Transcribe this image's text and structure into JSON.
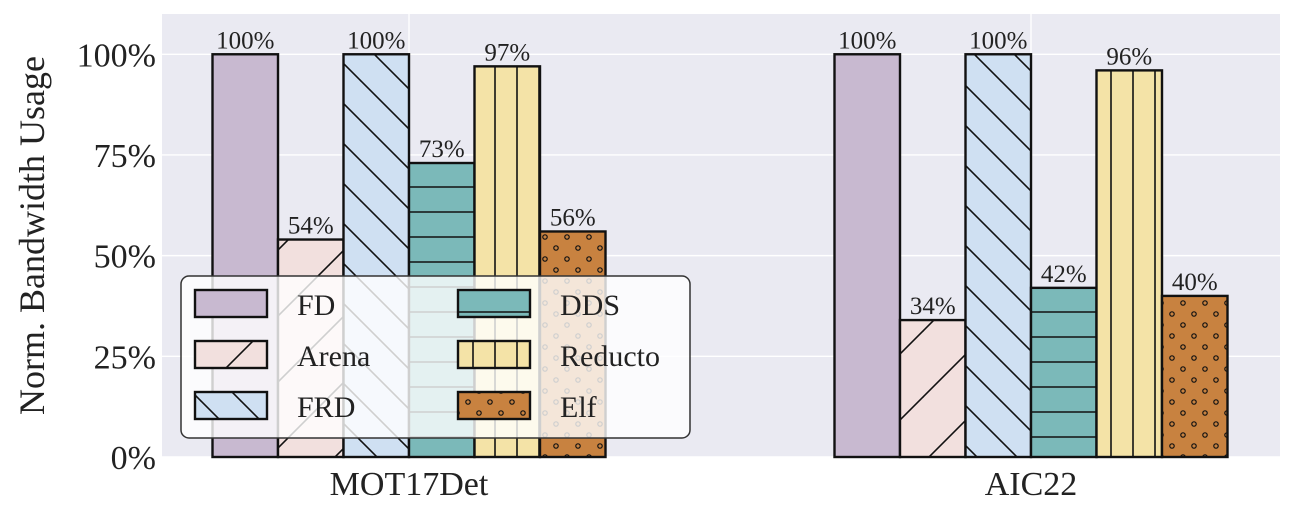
{
  "chart_data": {
    "type": "bar",
    "title": "",
    "xlabel": "",
    "ylabel": "Norm. Bandwidth Usage",
    "ylim": [
      0,
      110
    ],
    "yticks": [
      0,
      25,
      50,
      75,
      100
    ],
    "ytick_labels": [
      "0%",
      "25%",
      "50%",
      "75%",
      "100%"
    ],
    "categories": [
      "MOT17Det",
      "AIC22"
    ],
    "grid": true,
    "legend": "lower-left, 2 columns",
    "series": [
      {
        "name": "FD",
        "values": [
          100,
          100
        ],
        "labels": [
          "100%",
          "100%"
        ],
        "color": "#c8b9d0",
        "pattern": "none"
      },
      {
        "name": "Arena",
        "values": [
          54,
          34
        ],
        "labels": [
          "54%",
          "34%"
        ],
        "color": "#f2e0de",
        "pattern": "forward-diagonal"
      },
      {
        "name": "FRD",
        "values": [
          100,
          100
        ],
        "labels": [
          "100%",
          "100%"
        ],
        "color": "#cfe0f2",
        "pattern": "back-diagonal"
      },
      {
        "name": "DDS",
        "values": [
          73,
          42
        ],
        "labels": [
          "73%",
          "42%"
        ],
        "color": "#7bb9b9",
        "pattern": "horizontal"
      },
      {
        "name": "Reducto",
        "values": [
          97,
          96
        ],
        "labels": [
          "97%",
          "96%"
        ],
        "color": "#f4e3a7",
        "pattern": "vertical"
      },
      {
        "name": "Elf",
        "values": [
          56,
          40
        ],
        "labels": [
          "56%",
          "40%"
        ],
        "color": "#c88240",
        "pattern": "dots"
      }
    ]
  }
}
